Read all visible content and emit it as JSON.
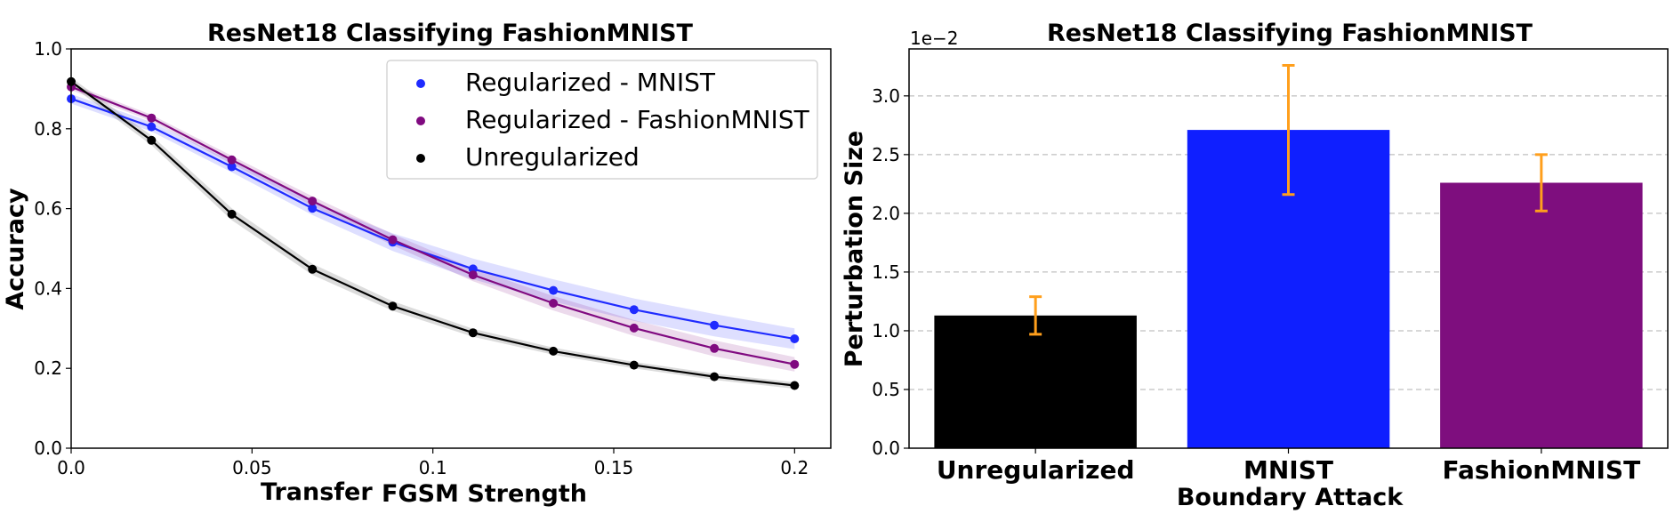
{
  "chart_data": [
    {
      "type": "line",
      "title": "ResNet18 Classifying FashionMNIST",
      "xlabel_parts": [
        "Transfer",
        "FGSM Strength"
      ],
      "ylabel": "Accuracy",
      "xlim": [
        0,
        0.21
      ],
      "ylim": [
        0,
        1.0
      ],
      "xticks": [
        "0.0",
        "0.05",
        "0.1",
        "0.15",
        "0.2"
      ],
      "xtick_values": [
        0,
        0.05,
        0.1,
        0.15,
        0.2
      ],
      "yticks": [
        "0.0",
        "0.2",
        "0.4",
        "0.6",
        "0.8",
        "1.0"
      ],
      "ytick_values": [
        0,
        0.2,
        0.4,
        0.6,
        0.8,
        1.0
      ],
      "legend_position": "top-right",
      "x": [
        0,
        0.0222,
        0.0444,
        0.0667,
        0.0889,
        0.1111,
        0.1333,
        0.1556,
        0.1778,
        0.2
      ],
      "series": [
        {
          "name": "Regularized - MNIST",
          "color": "#1f2bff",
          "values": [
            0.875,
            0.805,
            0.705,
            0.601,
            0.516,
            0.449,
            0.395,
            0.347,
            0.308,
            0.274
          ],
          "band": [
            0.012,
            0.012,
            0.014,
            0.017,
            0.022,
            0.026,
            0.028,
            0.028,
            0.028,
            0.026
          ]
        },
        {
          "name": "Regularized - FashionMNIST",
          "color": "#800a80",
          "values": [
            0.905,
            0.827,
            0.722,
            0.619,
            0.522,
            0.434,
            0.363,
            0.301,
            0.25,
            0.21
          ],
          "band": [
            0.008,
            0.008,
            0.01,
            0.012,
            0.014,
            0.016,
            0.018,
            0.02,
            0.02,
            0.018
          ]
        },
        {
          "name": "Unregularized",
          "color": "#000000",
          "values": [
            0.918,
            0.771,
            0.586,
            0.448,
            0.356,
            0.289,
            0.243,
            0.208,
            0.179,
            0.157
          ],
          "band": [
            0.01,
            0.012,
            0.015,
            0.014,
            0.012,
            0.01,
            0.009,
            0.008,
            0.008,
            0.008
          ]
        }
      ]
    },
    {
      "type": "bar",
      "title": "ResNet18 Classifying FashionMNIST",
      "xlabel": "Boundary Attack",
      "ylabel": "Perturbation Size",
      "y_offset_label": "1e−2",
      "ylim": [
        0,
        3.4
      ],
      "yticks": [
        "0.0",
        "0.5",
        "1.0",
        "1.5",
        "2.0",
        "2.5",
        "3.0"
      ],
      "ytick_values": [
        0,
        0.5,
        1.0,
        1.5,
        2.0,
        2.5,
        3.0
      ],
      "grid": "horizontal-dashed",
      "error_bar_color": "#ff9f1c",
      "categories": [
        "Unregularized",
        "MNIST",
        "FashionMNIST"
      ],
      "values": [
        1.13,
        2.71,
        2.26
      ],
      "errors": [
        0.16,
        0.55,
        0.24
      ],
      "colors": [
        "#000000",
        "#0f1fff",
        "#7e0e7e"
      ]
    }
  ]
}
